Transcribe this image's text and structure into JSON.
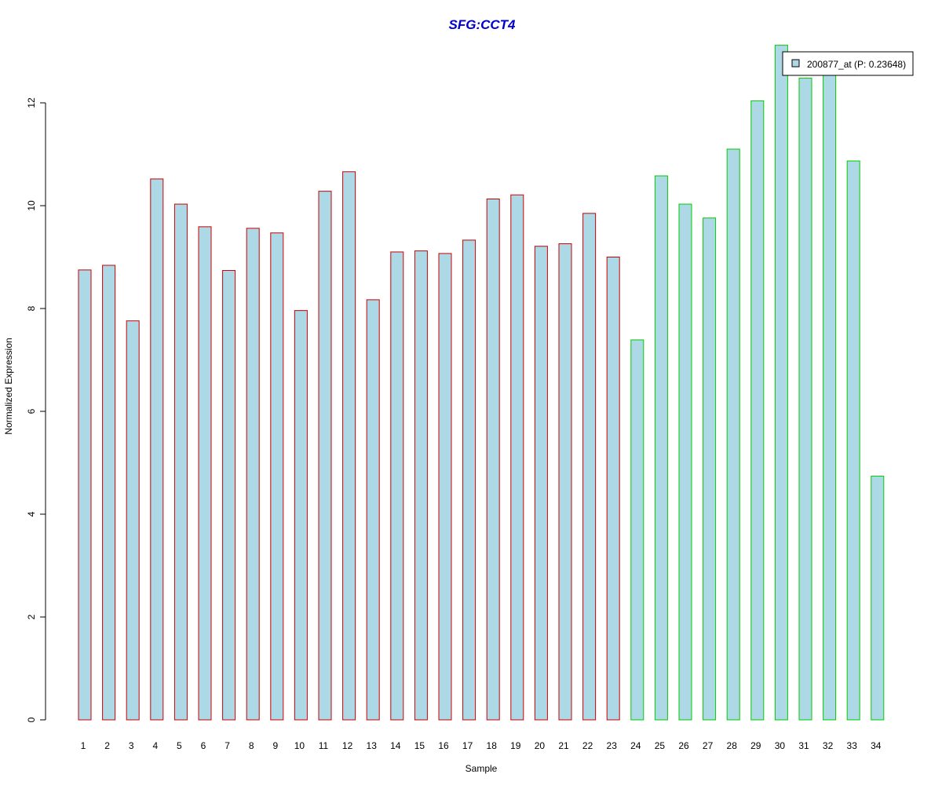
{
  "chart_data": {
    "type": "bar",
    "title": "SFG:CCT4",
    "xlabel": "Sample",
    "ylabel": "Normalized Expression",
    "ylim": [
      0,
      13.1
    ],
    "yticks": [
      0,
      2,
      4,
      6,
      8,
      10,
      12
    ],
    "categories": [
      "1",
      "2",
      "3",
      "4",
      "5",
      "6",
      "7",
      "8",
      "9",
      "10",
      "11",
      "12",
      "13",
      "14",
      "15",
      "16",
      "17",
      "18",
      "19",
      "20",
      "21",
      "22",
      "23",
      "24",
      "25",
      "26",
      "27",
      "28",
      "29",
      "30",
      "31",
      "32",
      "33",
      "34"
    ],
    "values": [
      8.75,
      8.84,
      7.76,
      10.52,
      10.03,
      9.59,
      8.74,
      9.56,
      9.47,
      7.96,
      10.28,
      10.66,
      8.17,
      9.1,
      9.12,
      9.07,
      9.33,
      10.13,
      10.21,
      9.21,
      9.26,
      9.85,
      9.0,
      7.39,
      10.58,
      10.03,
      9.76,
      11.1,
      12.04,
      13.12,
      12.48,
      12.8,
      10.87,
      4.74
    ],
    "groups": [
      {
        "range": [
          1,
          23
        ],
        "border_color": "#cc0000"
      },
      {
        "range": [
          24,
          34
        ],
        "border_color": "#00cc00"
      }
    ],
    "bar_fill": "#add8e6",
    "legend": {
      "label": "200877_at (P: 0.23648)",
      "position": "top-right"
    },
    "title_color": "#0000cc",
    "grid": false
  }
}
